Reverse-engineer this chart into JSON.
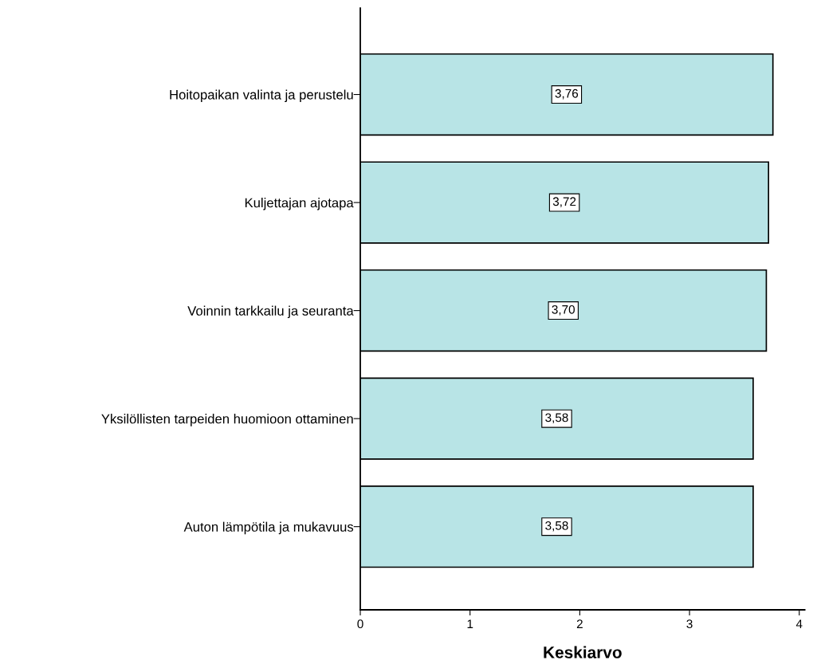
{
  "chart_data": {
    "type": "bar",
    "orientation": "horizontal",
    "xlabel": "Keskiarvo",
    "categories": [
      "Hoitopaikan valinta ja perustelu",
      "Kuljettajan ajotapa",
      "Voinnin tarkkailu ja seuranta",
      "Yksilöllisten tarpeiden huomioon ottaminen",
      "Auton lämpötila ja mukavuus"
    ],
    "values": [
      3.76,
      3.72,
      3.7,
      3.58,
      3.58
    ],
    "value_labels": [
      "3,76",
      "3,72",
      "3,70",
      "3,58",
      "3,58"
    ],
    "color": "#b8e4e6",
    "xlim": [
      0,
      4.05
    ],
    "xticks": [
      0,
      1,
      2,
      3,
      4
    ],
    "grid": false,
    "legend": false
  }
}
